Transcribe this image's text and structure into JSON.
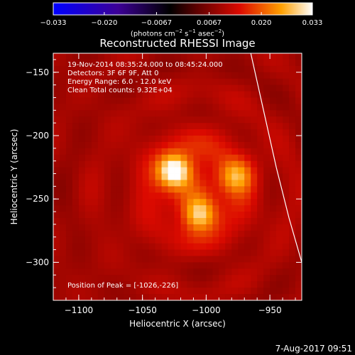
{
  "chart_data": {
    "type": "heatmap",
    "title": "Reconstructed RHESSI Image",
    "xlabel": "Heliocentric X (arcsec)",
    "ylabel": "Heliocentric Y (arcsec)",
    "xlim": [
      -1120,
      -925
    ],
    "ylim": [
      -330,
      -135
    ],
    "x_ticks": [
      -1100,
      -1050,
      -1000,
      -950
    ],
    "y_ticks": [
      -150,
      -200,
      -250,
      -300
    ],
    "x_tick_labels": [
      "−1100",
      "−1050",
      "−1000",
      "−950"
    ],
    "y_tick_labels": [
      "−150",
      "−200",
      "−250",
      "−300"
    ],
    "colorbar": {
      "range": [
        -0.033,
        0.033
      ],
      "ticks": [
        -0.033,
        -0.02,
        -0.0067,
        0.0067,
        0.02,
        0.033
      ],
      "tick_labels": [
        "−0.033",
        "−0.020",
        "−0.0067",
        "0.0067",
        "0.020",
        "0.033"
      ],
      "unit_parts": [
        "(photons cm",
        "−2",
        " s",
        "−1",
        " asec",
        "−2",
        ")"
      ],
      "colors": [
        "#0000ff",
        "#3c0096",
        "#000000",
        "#5a0000",
        "#dc0a00",
        "#ffa000",
        "#ffffff"
      ]
    },
    "sources": [
      {
        "x": -1025,
        "y": -228,
        "peak": 0.033
      },
      {
        "x": -1005,
        "y": -262,
        "peak": 0.026
      },
      {
        "x": -977,
        "y": -232,
        "peak": 0.021
      }
    ],
    "background_level": 0.0095,
    "limb_curve": [
      [
        -965,
        -135
      ],
      [
        -955,
        -180
      ],
      [
        -945,
        -225
      ],
      [
        -935,
        -265
      ],
      [
        -925,
        -300
      ]
    ]
  },
  "annotations": {
    "time": "19-Nov-2014 08:35:24.000 to 08:45:24.000",
    "detectors": "Detectors: 3F 6F 9F, Att 0",
    "energy": "Energy Range: 6.0 - 12.0 keV",
    "clean": "Clean    Total counts: 9.32E+04",
    "peak": "Position of Peak = [-1026,-226]"
  },
  "footer": "7-Aug-2017 09:51"
}
